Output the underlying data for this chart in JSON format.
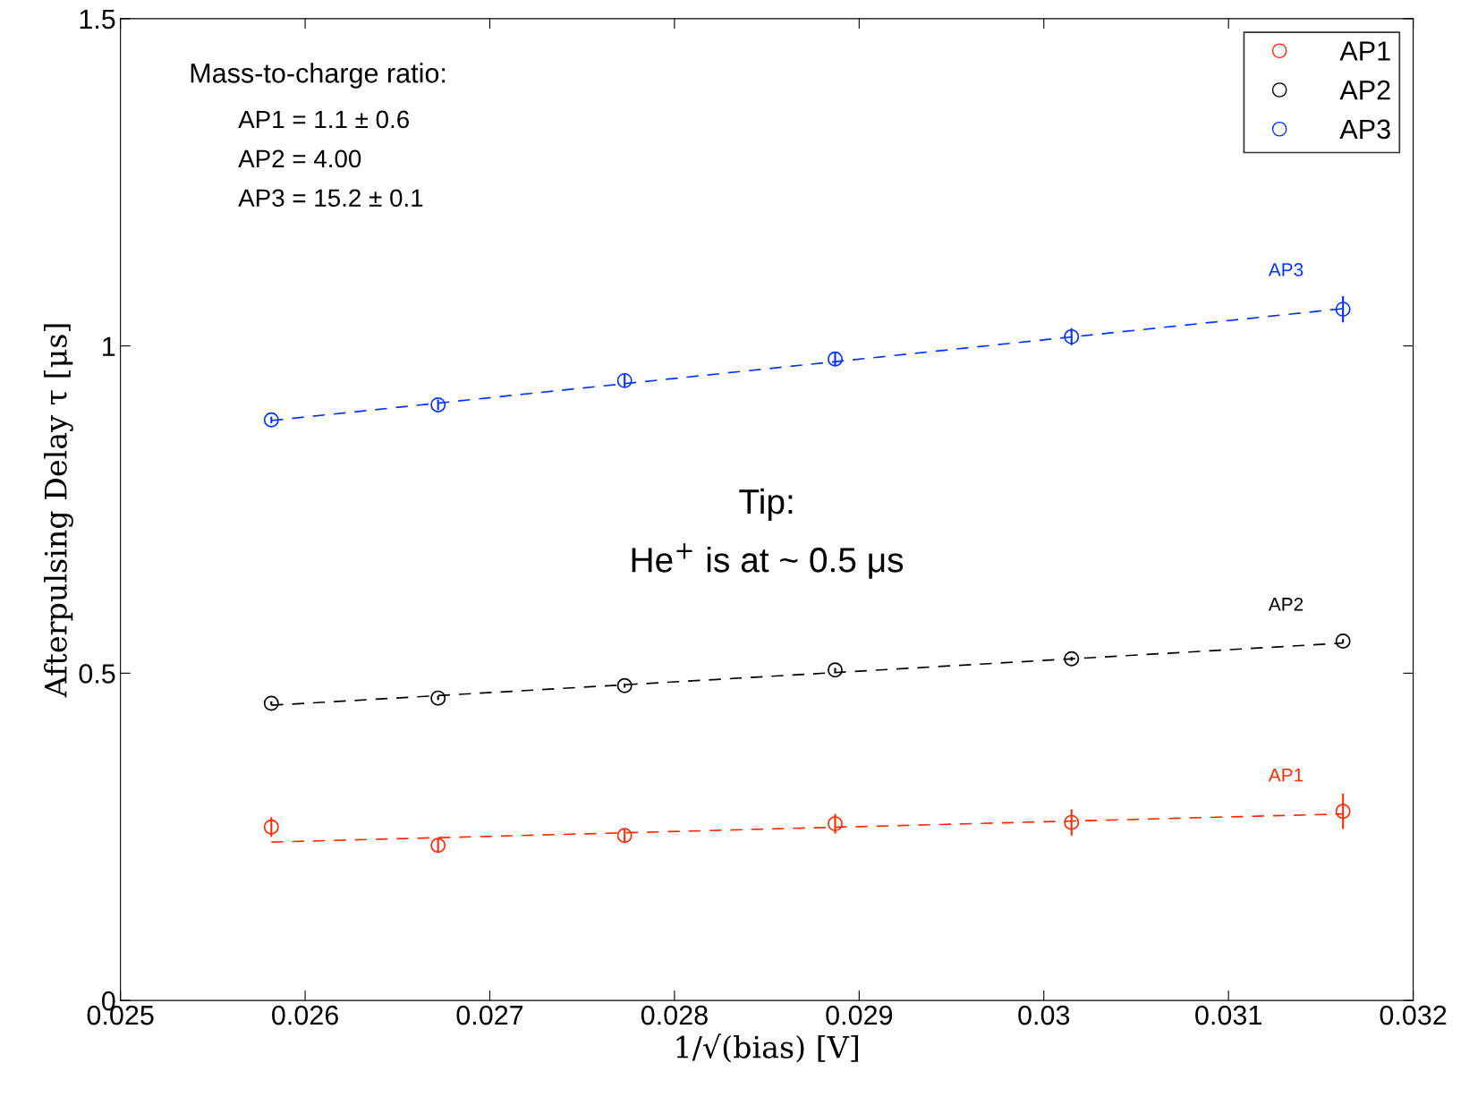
{
  "chart_data": {
    "type": "scatter",
    "xlabel": "1/√(bias) [V]",
    "ylabel": "Afterpulsing Delay τ [μs]",
    "xlim": [
      0.025,
      0.032
    ],
    "xticks": [
      0.025,
      0.026,
      0.027,
      0.028,
      0.029,
      0.03,
      0.031,
      0.032
    ],
    "ylim": [
      0,
      1.5
    ],
    "yticks": [
      0,
      0.5,
      1,
      1.5
    ],
    "grid": false,
    "legend": "top right",
    "marker": "circle",
    "series": [
      {
        "name": "AP1",
        "color": "#ff2a00",
        "x": [
          0.025817,
          0.02672,
          0.02773,
          0.02887,
          0.03015,
          0.03162
        ],
        "values": [
          0.265,
          0.237,
          0.252,
          0.27,
          0.272,
          0.289
        ],
        "errors": [
          0.015,
          0.01,
          0.01,
          0.015,
          0.02,
          0.027
        ]
      },
      {
        "name": "AP2",
        "color": "#000000",
        "x": [
          0.025817,
          0.02672,
          0.02773,
          0.02887,
          0.03015,
          0.03162
        ],
        "values": [
          0.454,
          0.462,
          0.481,
          0.505,
          0.522,
          0.549
        ],
        "errors": [
          0.003,
          0.003,
          0.003,
          0.003,
          0.003,
          0.003
        ]
      },
      {
        "name": "AP3",
        "color": "#0033ff",
        "x": [
          0.025817,
          0.02672,
          0.02773,
          0.02887,
          0.03015,
          0.03162
        ],
        "values": [
          0.887,
          0.91,
          0.947,
          0.98,
          1.014,
          1.056
        ],
        "errors": [
          0.005,
          0.008,
          0.01,
          0.01,
          0.013,
          0.02
        ]
      },
      {
        "type": "line",
        "name": "AP1",
        "color": "#ff2a00",
        "line_style": "dashed",
        "marker": "none",
        "x": [
          0.025817,
          0.03162
        ],
        "values": [
          0.242,
          0.285
        ]
      },
      {
        "type": "line",
        "name": "AP2",
        "color": "#000000",
        "line_style": "dashed",
        "marker": "none",
        "x": [
          0.025817,
          0.03162
        ],
        "values": [
          0.451,
          0.546
        ]
      },
      {
        "type": "line",
        "name": "AP3",
        "color": "#0033ff",
        "line_style": "dashed",
        "marker": "none",
        "x": [
          0.025817,
          0.03162
        ],
        "values": [
          0.886,
          1.057
        ]
      }
    ],
    "annotations": [
      "Mass-to-charge ratio:",
      "AP1 = 1.1 ± 0.6",
      "AP2 = 4.00",
      "AP3 = 15.2 ± 0.1",
      "Tip:",
      "He$^{+}$ is at ~ 0.5 μs"
    ]
  }
}
